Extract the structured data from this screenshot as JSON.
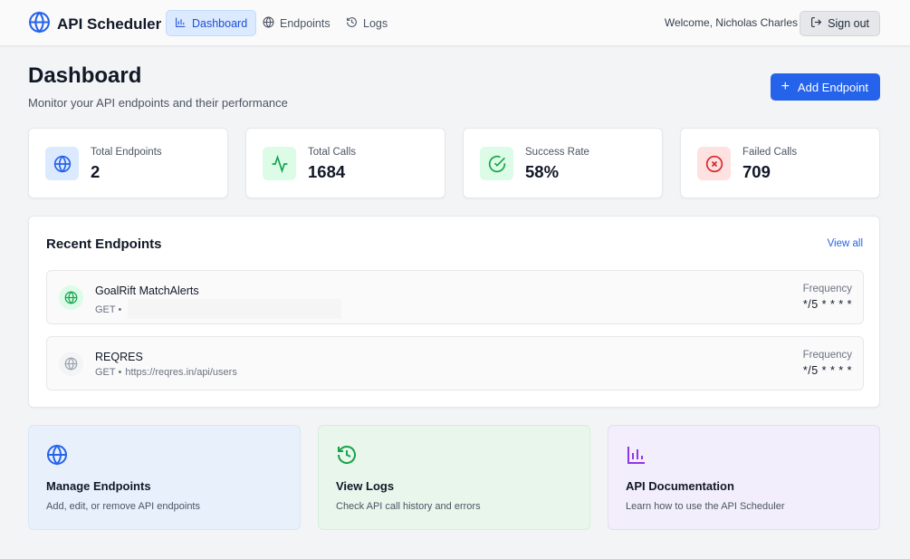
{
  "nav": {
    "brand": "API Scheduler",
    "items": [
      {
        "label": "Dashboard",
        "icon": "bar-chart-icon",
        "active": true
      },
      {
        "label": "Endpoints",
        "icon": "globe-icon",
        "active": false
      },
      {
        "label": "Logs",
        "icon": "history-icon",
        "active": false
      }
    ],
    "welcome": "Welcome, Nicholas Charles",
    "signout": "Sign out"
  },
  "header": {
    "title": "Dashboard",
    "subtitle": "Monitor your API endpoints and their performance",
    "add_button": "Add Endpoint"
  },
  "stats": [
    {
      "label": "Total Endpoints",
      "value": "2",
      "icon": "globe-icon",
      "color": "#2563eb",
      "bg": "#dbeafe"
    },
    {
      "label": "Total Calls",
      "value": "1684",
      "icon": "activity-icon",
      "color": "#16a34a",
      "bg": "#dcfce7"
    },
    {
      "label": "Success Rate",
      "value": "58%",
      "icon": "check-circle-icon",
      "color": "#16a34a",
      "bg": "#dcfce7"
    },
    {
      "label": "Failed Calls",
      "value": "709",
      "icon": "x-circle-icon",
      "color": "#dc2626",
      "bg": "#fee2e2"
    }
  ],
  "recent": {
    "title": "Recent Endpoints",
    "view_all": "View all",
    "endpoints": [
      {
        "name": "GoalRift MatchAlerts",
        "method": "GET •",
        "url": "",
        "frequency_label": "Frequency",
        "frequency": "*/5 * * * *"
      },
      {
        "name": "REQRES",
        "method": "GET •",
        "url": "https://reqres.in/api/users",
        "frequency_label": "Frequency",
        "frequency": "*/5 * * * *"
      }
    ]
  },
  "cards": [
    {
      "title": "Manage Endpoints",
      "description": "Add, edit, or remove API endpoints",
      "icon": "globe-icon",
      "color": "#2563eb",
      "bg": "#e8f0fc"
    },
    {
      "title": "View Logs",
      "description": "Check API call history and errors",
      "icon": "history-icon",
      "color": "#16a34a",
      "bg": "#e9f6ec"
    },
    {
      "title": "API Documentation",
      "description": "Learn how to use the API Scheduler",
      "icon": "bar-chart-icon",
      "color": "#9333ea",
      "bg": "#f3eefb"
    }
  ]
}
